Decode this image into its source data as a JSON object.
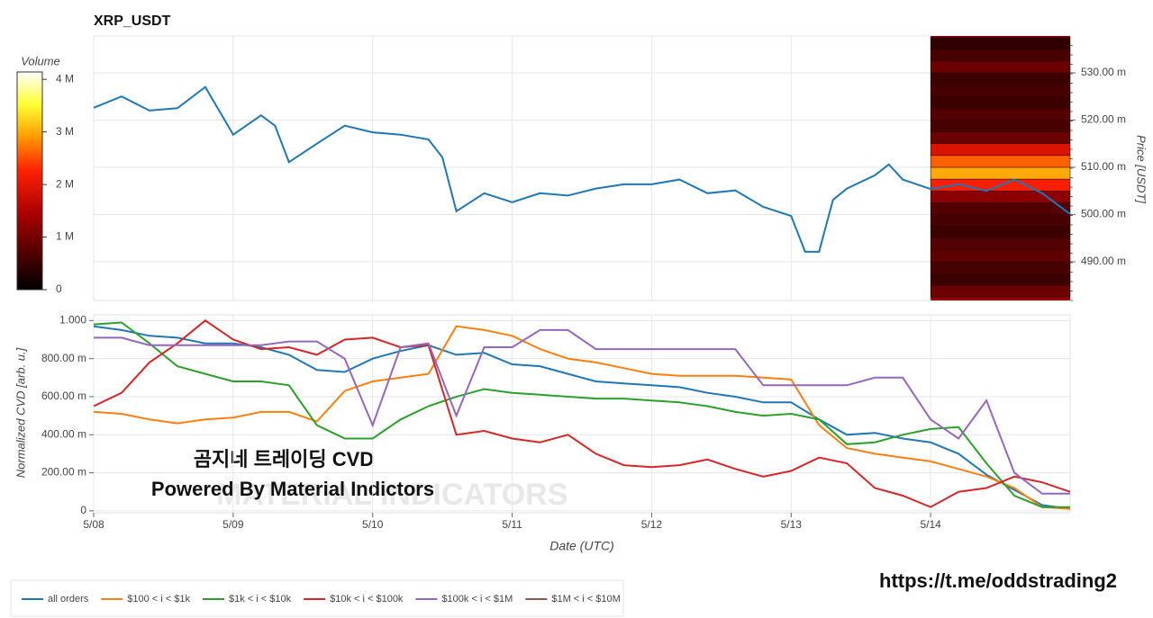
{
  "chart_data": [
    {
      "type": "line",
      "title": "XRP_USDT",
      "ylabel": "Price [USDT]",
      "xlim": [
        0,
        7
      ],
      "xticks": [
        0,
        1,
        2,
        3,
        4,
        5,
        6
      ],
      "ylim": [
        0.4818,
        0.5378
      ],
      "yticks": [
        {
          "value": 0.49,
          "label": "490.00 m"
        },
        {
          "value": 0.5,
          "label": "500.00 m"
        },
        {
          "value": 0.51,
          "label": "510.00 m"
        },
        {
          "value": 0.52,
          "label": "520.00 m"
        },
        {
          "value": 0.53,
          "label": "530.00 m"
        }
      ],
      "grid": true,
      "series": [
        {
          "name": "price",
          "color": "#1f77b4",
          "x": [
            0,
            0.2,
            0.4,
            0.6,
            0.8,
            1,
            1.2,
            1.3,
            1.4,
            1.6,
            1.8,
            2,
            2.2,
            2.4,
            2.5,
            2.6,
            2.8,
            3,
            3.2,
            3.4,
            3.6,
            3.8,
            4,
            4.2,
            4.4,
            4.6,
            4.8,
            5,
            5.1,
            5.2,
            5.3,
            5.4,
            5.6,
            5.7,
            5.8,
            6,
            6.2,
            6.4,
            6.6,
            6.8,
            7
          ],
          "values": [
            0.5226,
            0.525,
            0.522,
            0.5225,
            0.527,
            0.5169,
            0.521,
            0.5188,
            0.5111,
            0.515,
            0.5188,
            0.5174,
            0.5169,
            0.5159,
            0.5121,
            0.5007,
            0.5045,
            0.5026,
            0.5045,
            0.504,
            0.5055,
            0.5064,
            0.5064,
            0.5074,
            0.5045,
            0.5051,
            0.5016,
            0.4997,
            0.4921,
            0.4921,
            0.5031,
            0.5055,
            0.5083,
            0.5106,
            0.5074,
            0.5054,
            0.5064,
            0.505,
            0.5074,
            0.5045,
            0.5001
          ]
        }
      ],
      "heatmap": {
        "name": "Volume",
        "price_bins": [
          0.4825,
          0.485,
          0.4875,
          0.49,
          0.4925,
          0.495,
          0.4975,
          0.5,
          0.5025,
          0.505,
          0.5075,
          0.51,
          0.5125,
          0.515,
          0.5175,
          0.52,
          0.5225,
          0.525,
          0.5275,
          0.53,
          0.5325,
          0.535,
          0.5375
        ],
        "volumes": [
          900000,
          500000,
          600000,
          800000,
          700000,
          500000,
          600000,
          700000,
          1200000,
          2200000,
          3000000,
          2600000,
          1900000,
          900000,
          600000,
          700000,
          500000,
          600000,
          500000,
          900000,
          600000,
          400000
        ],
        "clim": [
          0,
          4140000
        ],
        "cticks": [
          0,
          {
            "value": 1000000,
            "label": "1 M"
          },
          {
            "value": 2000000,
            "label": "2 M"
          },
          {
            "value": 3000000,
            "label": "3 M"
          },
          {
            "value": 4000000,
            "label": "4 M"
          }
        ]
      }
    },
    {
      "type": "line",
      "xlabel": "Date (UTC)",
      "ylabel": "Normalized CVD [arb. u.]",
      "xlim": [
        0,
        7
      ],
      "xticks": [
        {
          "value": 0,
          "label": "5/08"
        },
        {
          "value": 1,
          "label": "5/09"
        },
        {
          "value": 2,
          "label": "5/10"
        },
        {
          "value": 3,
          "label": "5/11"
        },
        {
          "value": 4,
          "label": "5/12"
        },
        {
          "value": 5,
          "label": "5/13"
        },
        {
          "value": 6,
          "label": "5/14"
        }
      ],
      "ylim": [
        -0.01,
        1.03
      ],
      "yticks": [
        0,
        {
          "value": 0.2,
          "label": "200.00 m"
        },
        {
          "value": 0.4,
          "label": "400.00 m"
        },
        {
          "value": 0.6,
          "label": "600.00 m"
        },
        {
          "value": 0.8,
          "label": "800.00 m"
        },
        {
          "value": 1,
          "label": "1.000"
        }
      ],
      "grid": true,
      "x": [
        0,
        0.2,
        0.4,
        0.6,
        0.8,
        1,
        1.2,
        1.4,
        1.6,
        1.8,
        2,
        2.2,
        2.4,
        2.6,
        2.8,
        3,
        3.2,
        3.4,
        3.6,
        3.8,
        4,
        4.2,
        4.4,
        4.6,
        4.8,
        5,
        5.2,
        5.4,
        5.6,
        5.8,
        6,
        6.2,
        6.4,
        6.6,
        6.8,
        7
      ],
      "series": [
        {
          "name": "all orders",
          "color": "#1f77b4",
          "values": [
            0.97,
            0.95,
            0.92,
            0.91,
            0.88,
            0.88,
            0.86,
            0.82,
            0.74,
            0.73,
            0.8,
            0.84,
            0.87,
            0.82,
            0.83,
            0.77,
            0.76,
            0.72,
            0.68,
            0.67,
            0.66,
            0.65,
            0.62,
            0.6,
            0.57,
            0.57,
            0.48,
            0.4,
            0.41,
            0.38,
            0.36,
            0.3,
            0.19,
            0.11,
            0.03,
            0.01
          ]
        },
        {
          "name": "$100 < i < $1k",
          "color": "#ff7f0e",
          "values": [
            0.52,
            0.51,
            0.48,
            0.46,
            0.48,
            0.49,
            0.52,
            0.52,
            0.47,
            0.63,
            0.68,
            0.7,
            0.72,
            0.97,
            0.95,
            0.92,
            0.85,
            0.8,
            0.78,
            0.75,
            0.72,
            0.71,
            0.71,
            0.71,
            0.7,
            0.69,
            0.45,
            0.33,
            0.3,
            0.28,
            0.26,
            0.22,
            0.18,
            0.12,
            0.02,
            0.01
          ]
        },
        {
          "name": "$1k < i < $10k",
          "color": "#2ca02c",
          "values": [
            0.98,
            0.99,
            0.88,
            0.76,
            0.72,
            0.68,
            0.68,
            0.66,
            0.45,
            0.38,
            0.38,
            0.48,
            0.55,
            0.6,
            0.64,
            0.62,
            0.61,
            0.6,
            0.59,
            0.59,
            0.58,
            0.57,
            0.55,
            0.52,
            0.5,
            0.51,
            0.48,
            0.35,
            0.36,
            0.4,
            0.43,
            0.44,
            0.25,
            0.08,
            0.02,
            0.02
          ]
        },
        {
          "name": "$10k < i < $100k",
          "color": "#d62728",
          "values": [
            0.55,
            0.62,
            0.78,
            0.88,
            1,
            0.9,
            0.85,
            0.86,
            0.82,
            0.9,
            0.91,
            0.86,
            0.87,
            0.4,
            0.42,
            0.38,
            0.36,
            0.4,
            0.3,
            0.24,
            0.23,
            0.24,
            0.27,
            0.22,
            0.18,
            0.21,
            0.28,
            0.25,
            0.12,
            0.08,
            0.02,
            0.1,
            0.12,
            0.18,
            0.15,
            0.1
          ]
        },
        {
          "name": "$100k < i < $1M",
          "color": "#9467bd",
          "values": [
            0.91,
            0.91,
            0.87,
            0.87,
            0.87,
            0.87,
            0.87,
            0.89,
            0.89,
            0.8,
            0.45,
            0.86,
            0.88,
            0.5,
            0.86,
            0.86,
            0.95,
            0.95,
            0.85,
            0.85,
            0.85,
            0.85,
            0.85,
            0.85,
            0.66,
            0.66,
            0.66,
            0.66,
            0.7,
            0.7,
            0.48,
            0.38,
            0.58,
            0.2,
            0.09,
            0.09
          ]
        },
        {
          "name": "$1M < i < $10M",
          "color": "#8c564b",
          "values": [
            null,
            null,
            null,
            null,
            null,
            null,
            null,
            null,
            null,
            null,
            null,
            null,
            null,
            null,
            null,
            null,
            null,
            null,
            null,
            null,
            null,
            null,
            null,
            null,
            null,
            null,
            null,
            null,
            null,
            null,
            null,
            null,
            null,
            null,
            null,
            null
          ]
        }
      ]
    }
  ],
  "watermark": {
    "line1": "곰지네 트레이딩 CVD",
    "line2": "Powered By Material Indictors",
    "logo": "MATERIAL INDICATORS"
  },
  "link": "https://t.me/oddstrading2"
}
